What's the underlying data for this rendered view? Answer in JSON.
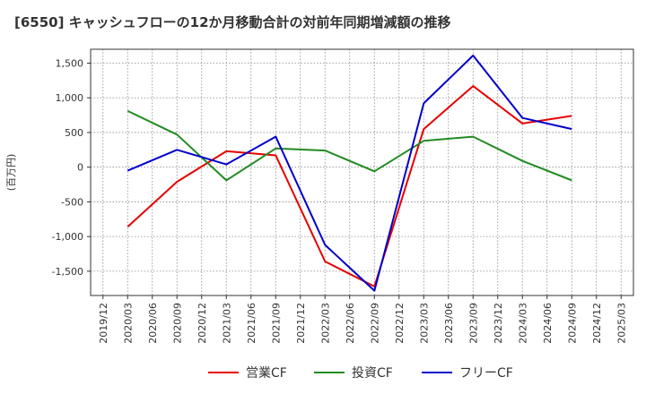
{
  "chart_data": {
    "type": "line",
    "title": "[6550]  キャッシュフローの12か月移動合計の対前年同期増減額の推移",
    "ylabel": "(百万円)",
    "xlabel": "",
    "ylim": [
      -1850,
      1700
    ],
    "yticks": [
      1500,
      1000,
      500,
      0,
      -500,
      -1000,
      -1500
    ],
    "ytick_labels": [
      "1,500",
      "1,000",
      "500",
      "0",
      "-500",
      "-1,000",
      "-1,500"
    ],
    "x_ticks": [
      "2019/12",
      "2020/03",
      "2020/06",
      "2020/09",
      "2020/12",
      "2021/03",
      "2021/06",
      "2021/09",
      "2021/12",
      "2022/03",
      "2022/06",
      "2022/09",
      "2022/12",
      "2023/03",
      "2023/06",
      "2023/09",
      "2023/12",
      "2024/03",
      "2024/06",
      "2024/09",
      "2024/12",
      "2025/03"
    ],
    "grid": true,
    "legend_position": "bottom",
    "series": [
      {
        "name": "営業CF",
        "color": "#e60000",
        "points": [
          {
            "x": "2020/03",
            "y": -860
          },
          {
            "x": "2020/09",
            "y": -210
          },
          {
            "x": "2021/03",
            "y": 230
          },
          {
            "x": "2021/09",
            "y": 170
          },
          {
            "x": "2022/03",
            "y": -1360
          },
          {
            "x": "2022/09",
            "y": -1720
          },
          {
            "x": "2023/03",
            "y": 550
          },
          {
            "x": "2023/09",
            "y": 1170
          },
          {
            "x": "2024/03",
            "y": 630
          },
          {
            "x": "2024/09",
            "y": 740
          }
        ]
      },
      {
        "name": "投資CF",
        "color": "#228b22",
        "points": [
          {
            "x": "2020/03",
            "y": 810
          },
          {
            "x": "2020/09",
            "y": 470
          },
          {
            "x": "2021/03",
            "y": -190
          },
          {
            "x": "2021/09",
            "y": 270
          },
          {
            "x": "2022/03",
            "y": 240
          },
          {
            "x": "2022/09",
            "y": -60
          },
          {
            "x": "2023/03",
            "y": 380
          },
          {
            "x": "2023/09",
            "y": 440
          },
          {
            "x": "2024/03",
            "y": 90
          },
          {
            "x": "2024/09",
            "y": -190
          }
        ]
      },
      {
        "name": "フリーCF",
        "color": "#0000cc",
        "points": [
          {
            "x": "2020/03",
            "y": -50
          },
          {
            "x": "2020/09",
            "y": 250
          },
          {
            "x": "2021/03",
            "y": 40
          },
          {
            "x": "2021/09",
            "y": 440
          },
          {
            "x": "2022/03",
            "y": -1120
          },
          {
            "x": "2022/09",
            "y": -1780
          },
          {
            "x": "2023/03",
            "y": 920
          },
          {
            "x": "2023/09",
            "y": 1610
          },
          {
            "x": "2024/03",
            "y": 710
          },
          {
            "x": "2024/09",
            "y": 550
          }
        ]
      }
    ]
  }
}
